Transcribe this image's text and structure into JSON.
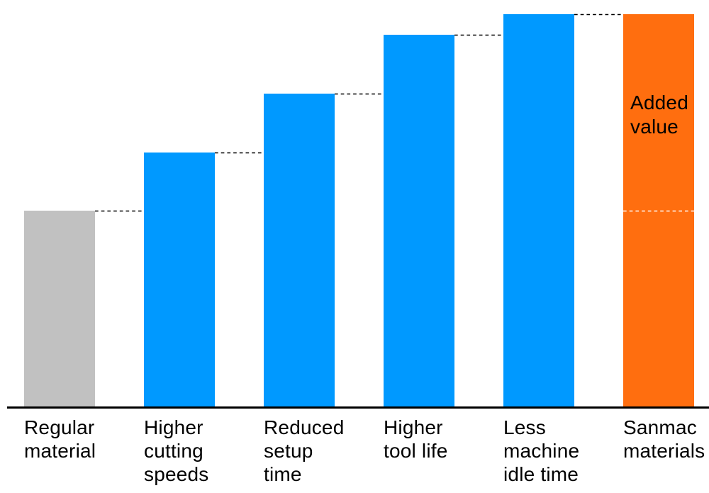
{
  "chart_data": {
    "type": "bar",
    "subtype": "waterfall",
    "title": "",
    "categories": [
      "Regular material",
      "Higher cutting speeds",
      "Reduced setup time",
      "Higher tool life",
      "Less machine idle time",
      "Sanmac materials"
    ],
    "categories_wrapped": [
      "Regular\nmaterial",
      "Higher\ncutting\nspeeds",
      "Reduced\nsetup\ntime",
      "Higher\ntool life",
      "Less\nmachine\nidle time",
      "Sanmac\nmaterials"
    ],
    "roles": [
      "base",
      "increase",
      "increase",
      "increase",
      "increase",
      "total"
    ],
    "values": [
      276,
      82,
      83,
      83,
      29,
      553
    ],
    "value_units": "relative units (chart has no numeric axis; values estimated from bar heights)",
    "ylim": [
      0,
      580
    ],
    "xlabel": "",
    "ylabel": "",
    "grid": false,
    "legend": false,
    "annotation_text": "Added\nvalue",
    "annotation_target": "Sanmac materials",
    "base_level_marker": {
      "description": "white dashed line across total bar at the base (Regular material) level",
      "level": 276
    },
    "connector_style": "black dashed lines linking successive cumulative bar tops",
    "colors": {
      "base": "#c1c1c1",
      "increase": "#0099ff",
      "total": "#ff6e0f",
      "axis": "#000000",
      "text": "#000000",
      "marker": "#ffffff",
      "connector": "#000000",
      "background": "#ffffff"
    }
  }
}
